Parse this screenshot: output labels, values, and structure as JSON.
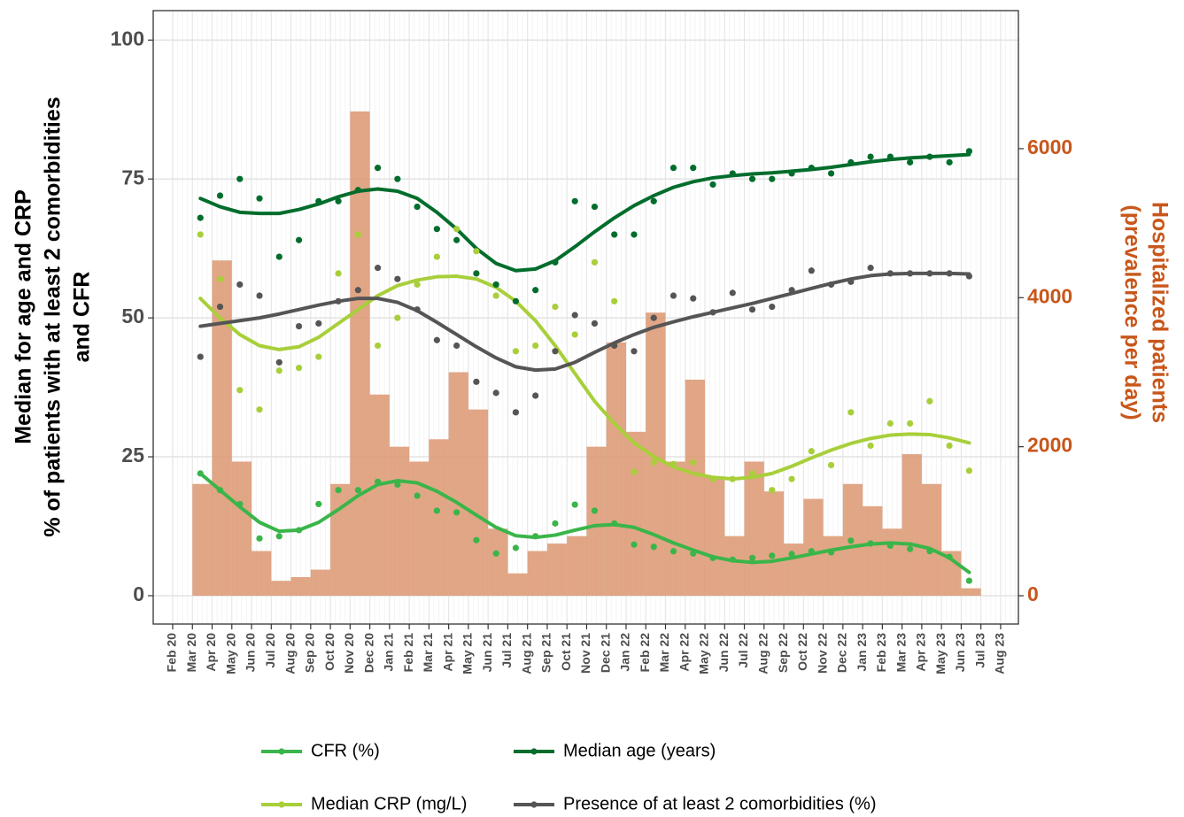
{
  "chart_data": {
    "type": "combo",
    "y_title": [
      "Median for age and CRP",
      "% of patients with at least 2 comorbidities",
      "and CFR"
    ],
    "y2_title": [
      "Hospitalized patients",
      "(prevalence per day)"
    ],
    "categories": [
      "Feb 20",
      "Mar 20",
      "Apr 20",
      "May 20",
      "Jun 20",
      "Jul 20",
      "Aug 20",
      "Sep 20",
      "Oct 20",
      "Nov 20",
      "Dec 20",
      "Jan 21",
      "Feb 21",
      "Mar 21",
      "Apr 21",
      "May 21",
      "Jun 21",
      "Jul 21",
      "Aug 21",
      "Sep 21",
      "Oct 21",
      "Nov 21",
      "Dec 21",
      "Jan 22",
      "Feb 22",
      "Mar 22",
      "Apr 22",
      "May 22",
      "Jun 22",
      "Jul 22",
      "Aug 22",
      "Sep 22",
      "Oct 22",
      "Nov 22",
      "Dec 22",
      "Jan 23",
      "Feb 23",
      "Mar 23",
      "Apr 23",
      "May 23",
      "Jun 23",
      "Jul 23",
      "Aug 23"
    ],
    "ylim": [
      -5.1,
      105.3
    ],
    "yticks": [
      0,
      25,
      50,
      75,
      100
    ],
    "y2lim": [
      -380,
      7853
    ],
    "y2ticks": [
      0,
      2000,
      4000,
      6000
    ],
    "y2_color": "#c8571b",
    "grid": true,
    "legend": "bottom",
    "bars": {
      "axis": "y2",
      "color": "#dc9670",
      "values": [
        null,
        1500,
        4500,
        1800,
        600,
        200,
        250,
        350,
        1500,
        6500,
        2700,
        2000,
        1800,
        2100,
        3000,
        2500,
        900,
        300,
        600,
        700,
        800,
        2000,
        3400,
        2200,
        3800,
        1800,
        2900,
        1600,
        800,
        1800,
        1400,
        700,
        1300,
        800,
        1500,
        1200,
        900,
        1900,
        1500,
        600,
        100,
        null,
        null
      ]
    },
    "series": [
      {
        "name": "CFR (%)",
        "color": "#3ab54a",
        "values": [
          null,
          22,
          19,
          16.5,
          10.3,
          10.7,
          11.8,
          16.5,
          19,
          19,
          20.5,
          20,
          18,
          15.3,
          15,
          10,
          7.6,
          8.6,
          10.7,
          13,
          16.4,
          15.3,
          13,
          9.2,
          8.8,
          8,
          7.6,
          6.8,
          6.5,
          6.8,
          7.2,
          7.5,
          8,
          7.8,
          9.9,
          9.4,
          9,
          8.4,
          8,
          7,
          2.7,
          null,
          null
        ],
        "trend": [
          null,
          22,
          19,
          16,
          13.2,
          11.6,
          11.8,
          13.2,
          15.5,
          18,
          20,
          20.7,
          20.3,
          18.8,
          16.8,
          14.5,
          12.3,
          10.8,
          10.5,
          10.9,
          11.8,
          12.6,
          12.8,
          12.3,
          11,
          9.5,
          8.2,
          7,
          6.3,
          6,
          6.2,
          6.8,
          7.5,
          8.2,
          8.8,
          9.3,
          9.5,
          9.3,
          8.5,
          6.8,
          4.2,
          null,
          null
        ]
      },
      {
        "name": "Median age (years)",
        "color": "#006d2c",
        "values": [
          null,
          68,
          72,
          75,
          71.5,
          61,
          64,
          71,
          71,
          73,
          77,
          75,
          70,
          66,
          64,
          58,
          56,
          53,
          55,
          60,
          71,
          70,
          65,
          65,
          71,
          77,
          77,
          74,
          76,
          75,
          75,
          76,
          77,
          76,
          78,
          79,
          79,
          78,
          79,
          78,
          80,
          null,
          null
        ],
        "trend": [
          null,
          71.5,
          70,
          69,
          68.8,
          68.8,
          69.5,
          70.5,
          71.8,
          72.8,
          73.2,
          72.8,
          71.5,
          69,
          66,
          62.5,
          59.8,
          58.5,
          58.8,
          60.3,
          62.8,
          65.5,
          68,
          70.2,
          72,
          73.5,
          74.5,
          75.2,
          75.6,
          75.9,
          76.1,
          76.4,
          76.7,
          77.1,
          77.6,
          78.1,
          78.5,
          78.8,
          79,
          79.2,
          79.4,
          null,
          null
        ]
      },
      {
        "name": "Median CRP (mg/L)",
        "color": "#a8cf3a",
        "values": [
          null,
          65,
          57,
          37,
          33.5,
          40.5,
          41,
          43,
          58,
          65,
          45,
          50,
          56,
          61,
          66,
          62,
          54,
          44,
          45,
          52,
          47,
          60,
          53,
          22.3,
          24,
          23.7,
          24,
          21,
          21,
          22,
          19,
          21,
          26,
          23.5,
          33,
          27,
          31,
          31,
          35,
          27,
          22.5,
          null,
          null
        ],
        "trend": [
          null,
          53.5,
          50,
          47,
          45,
          44.3,
          44.8,
          46.5,
          49,
          51.5,
          54,
          55.8,
          56.8,
          57.4,
          57.5,
          57,
          55.5,
          53,
          49.5,
          45,
          40,
          35,
          31,
          27.5,
          25,
          23.2,
          22,
          21.3,
          21,
          21.3,
          22,
          23.3,
          24.8,
          26.2,
          27.4,
          28.3,
          28.9,
          29.1,
          29,
          28.4,
          27.5,
          null,
          null
        ]
      },
      {
        "name": "Presence of at least 2 comorbidities (%)",
        "color": "#555555",
        "values": [
          null,
          43,
          52,
          56,
          54,
          42,
          48.5,
          49,
          53,
          55,
          59,
          57,
          51.5,
          46,
          45,
          38.5,
          36.5,
          33,
          36,
          44,
          50.5,
          49,
          45,
          44,
          50,
          54,
          53.5,
          51,
          54.5,
          51.5,
          52,
          55,
          58.5,
          56,
          56.5,
          59,
          58,
          58,
          58,
          58,
          57.5,
          null,
          null
        ],
        "trend": [
          null,
          48.5,
          49,
          49.5,
          50,
          50.7,
          51.5,
          52.3,
          53,
          53.5,
          53.5,
          52.8,
          51.3,
          49.2,
          47,
          44.8,
          42.8,
          41.2,
          40.6,
          40.8,
          42,
          43.8,
          45.5,
          47,
          48.3,
          49.3,
          50.2,
          51,
          51.8,
          52.6,
          53.5,
          54.4,
          55.3,
          56.2,
          57,
          57.6,
          57.9,
          58,
          58,
          58,
          57.9,
          null,
          null
        ]
      }
    ]
  }
}
